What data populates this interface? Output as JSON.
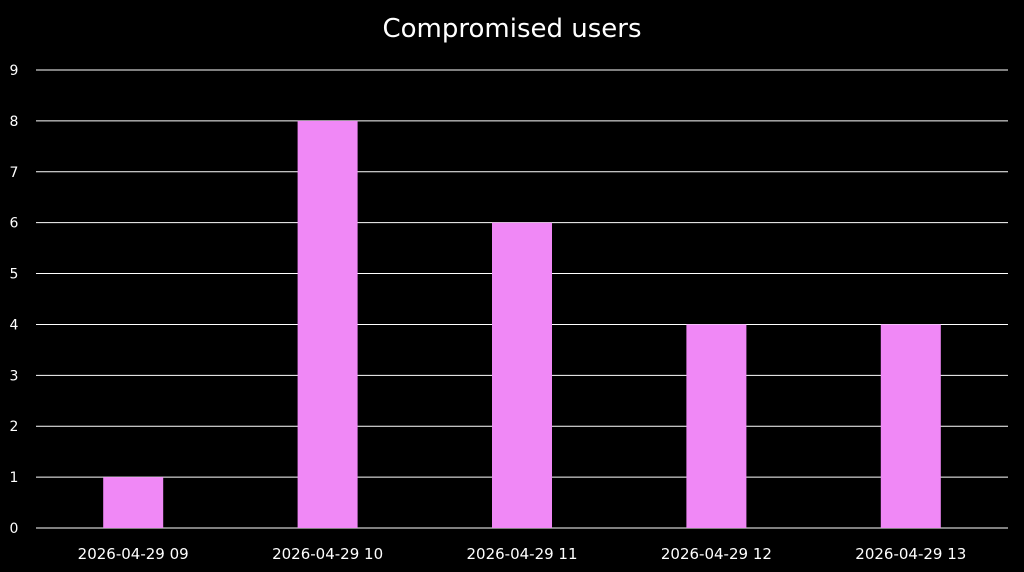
{
  "chart_data": {
    "type": "bar",
    "title": "Compromised users",
    "xlabel": "",
    "ylabel": "",
    "categories": [
      "2026-04-29 09",
      "2026-04-29 10",
      "2026-04-29 11",
      "2026-04-29 12",
      "2026-04-29 13"
    ],
    "values": [
      1,
      8,
      6,
      4,
      4
    ],
    "ylim": [
      0,
      9
    ],
    "yticks": [
      0,
      1,
      2,
      3,
      4,
      5,
      6,
      7,
      8,
      9
    ],
    "grid": true,
    "legend": "none"
  },
  "colors": {
    "background": "#000000",
    "bar": "#f088f6",
    "gridline": "#ffffff",
    "text": "#ffffff"
  }
}
